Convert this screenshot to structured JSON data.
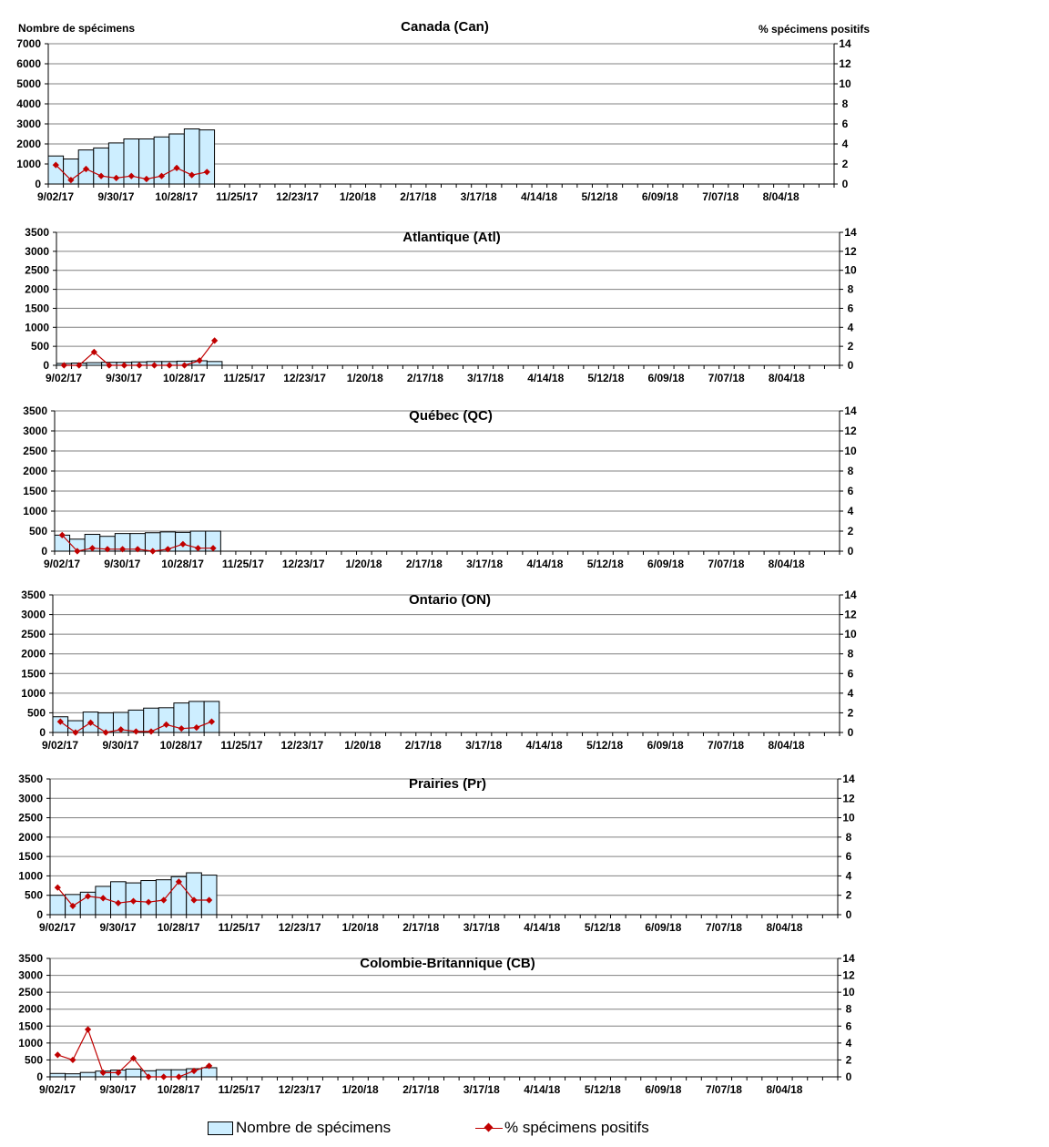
{
  "left_axis_title": "Nombre de spécimens",
  "right_axis_title": "% spécimens positifs",
  "legend": {
    "bars": "Nombre de spécimens",
    "line": "% spécimens positifs"
  },
  "colors": {
    "bar_fill": "#cdeeff",
    "bar_stroke": "#000000",
    "line": "#c00000",
    "grid": "#808080"
  },
  "chart_data": [
    {
      "type": "bar",
      "title": "Canada (Can)",
      "x_tick_labels": [
        "9/02/17",
        "9/30/17",
        "10/28/17",
        "11/25/17",
        "12/23/17",
        "1/20/18",
        "2/17/18",
        "3/17/18",
        "4/14/18",
        "5/12/18",
        "6/09/18",
        "7/07/18",
        "8/04/18"
      ],
      "ylim": [
        0,
        7000
      ],
      "y_ticks": [
        0,
        1000,
        2000,
        3000,
        4000,
        5000,
        6000,
        7000
      ],
      "y2lim": [
        0,
        14
      ],
      "y2_ticks": [
        0,
        2,
        4,
        6,
        8,
        10,
        12,
        14
      ],
      "series": [
        {
          "name": "Nombre de spécimens",
          "axis": "left",
          "values": [
            1400,
            1250,
            1700,
            1800,
            2050,
            2250,
            2250,
            2350,
            2500,
            2750,
            2700
          ]
        },
        {
          "name": "% spécimens positifs",
          "axis": "right",
          "values": [
            1.9,
            0.4,
            1.5,
            0.8,
            0.6,
            0.8,
            0.5,
            0.8,
            1.6,
            0.9,
            1.2
          ]
        }
      ]
    },
    {
      "type": "bar",
      "title": "Atlantique (Atl)",
      "x_tick_labels": [
        "9/02/17",
        "9/30/17",
        "10/28/17",
        "11/25/17",
        "12/23/17",
        "1/20/18",
        "2/17/18",
        "3/17/18",
        "4/14/18",
        "5/12/18",
        "6/09/18",
        "7/07/18",
        "8/04/18"
      ],
      "ylim": [
        0,
        3500
      ],
      "y_ticks": [
        0,
        500,
        1000,
        1500,
        2000,
        2500,
        3000,
        3500
      ],
      "y2lim": [
        0,
        14
      ],
      "y2_ticks": [
        0,
        2,
        4,
        6,
        8,
        10,
        12,
        14
      ],
      "series": [
        {
          "name": "Nombre de spécimens",
          "axis": "left",
          "values": [
            50,
            60,
            70,
            80,
            80,
            90,
            100,
            100,
            110,
            120,
            100
          ]
        },
        {
          "name": "% spécimens positifs",
          "axis": "right",
          "values": [
            0,
            0,
            1.4,
            0,
            0,
            0,
            0,
            0,
            0,
            0.5,
            2.6
          ]
        }
      ]
    },
    {
      "type": "bar",
      "title": "Québec (QC)",
      "x_tick_labels": [
        "9/02/17",
        "9/30/17",
        "10/28/17",
        "11/25/17",
        "12/23/17",
        "1/20/18",
        "2/17/18",
        "3/17/18",
        "4/14/18",
        "5/12/18",
        "6/09/18",
        "7/07/18",
        "8/04/18"
      ],
      "ylim": [
        0,
        3500
      ],
      "y_ticks": [
        0,
        500,
        1000,
        1500,
        2000,
        2500,
        3000,
        3500
      ],
      "y2lim": [
        0,
        14
      ],
      "y2_ticks": [
        0,
        2,
        4,
        6,
        8,
        10,
        12,
        14
      ],
      "series": [
        {
          "name": "Nombre de spécimens",
          "axis": "left",
          "values": [
            400,
            300,
            420,
            370,
            440,
            440,
            460,
            480,
            470,
            500,
            500
          ]
        },
        {
          "name": "% spécimens positifs",
          "axis": "right",
          "values": [
            1.6,
            0,
            0.3,
            0.2,
            0.2,
            0.2,
            0,
            0.2,
            0.7,
            0.3,
            0.3
          ]
        }
      ]
    },
    {
      "type": "bar",
      "title": "Ontario (ON)",
      "x_tick_labels": [
        "9/02/17",
        "9/30/17",
        "10/28/17",
        "11/25/17",
        "12/23/17",
        "1/20/18",
        "2/17/18",
        "3/17/18",
        "4/14/18",
        "5/12/18",
        "6/09/18",
        "7/07/18",
        "8/04/18"
      ],
      "ylim": [
        0,
        3500
      ],
      "y_ticks": [
        0,
        500,
        1000,
        1500,
        2000,
        2500,
        3000,
        3500
      ],
      "y2lim": [
        0,
        14
      ],
      "y2_ticks": [
        0,
        2,
        4,
        6,
        8,
        10,
        12,
        14
      ],
      "series": [
        {
          "name": "Nombre de spécimens",
          "axis": "left",
          "values": [
            400,
            300,
            520,
            500,
            510,
            570,
            620,
            630,
            750,
            790,
            790
          ]
        },
        {
          "name": "% spécimens positifs",
          "axis": "right",
          "values": [
            1.1,
            0,
            1.0,
            0,
            0.3,
            0.1,
            0.1,
            0.8,
            0.4,
            0.5,
            1.1
          ]
        }
      ]
    },
    {
      "type": "bar",
      "title": "Prairies (Pr)",
      "x_tick_labels": [
        "9/02/17",
        "9/30/17",
        "10/28/17",
        "11/25/17",
        "12/23/17",
        "1/20/18",
        "2/17/18",
        "3/17/18",
        "4/14/18",
        "5/12/18",
        "6/09/18",
        "7/07/18",
        "8/04/18"
      ],
      "ylim": [
        0,
        3500
      ],
      "y_ticks": [
        0,
        500,
        1000,
        1500,
        2000,
        2500,
        3000,
        3500
      ],
      "y2lim": [
        0,
        14
      ],
      "y2_ticks": [
        0,
        2,
        4,
        6,
        8,
        10,
        12,
        14
      ],
      "series": [
        {
          "name": "Nombre de spécimens",
          "axis": "left",
          "values": [
            500,
            520,
            580,
            730,
            850,
            820,
            880,
            900,
            980,
            1080,
            1020
          ]
        },
        {
          "name": "% spécimens positifs",
          "axis": "right",
          "values": [
            2.8,
            0.9,
            1.9,
            1.7,
            1.2,
            1.4,
            1.3,
            1.5,
            3.4,
            1.5,
            1.5
          ]
        }
      ]
    },
    {
      "type": "bar",
      "title": "Colombie-Britannique (CB)",
      "x_tick_labels": [
        "9/02/17",
        "9/30/17",
        "10/28/17",
        "11/25/17",
        "12/23/17",
        "1/20/18",
        "2/17/18",
        "3/17/18",
        "4/14/18",
        "5/12/18",
        "6/09/18",
        "7/07/18",
        "8/04/18"
      ],
      "ylim": [
        0,
        3500
      ],
      "y_ticks": [
        0,
        500,
        1000,
        1500,
        2000,
        2500,
        3000,
        3500
      ],
      "y2lim": [
        0,
        14
      ],
      "y2_ticks": [
        0,
        2,
        4,
        6,
        8,
        10,
        12,
        14
      ],
      "series": [
        {
          "name": "Nombre de spécimens",
          "axis": "left",
          "values": [
            100,
            90,
            130,
            170,
            200,
            230,
            180,
            210,
            210,
            240,
            270
          ]
        },
        {
          "name": "% spécimens positifs",
          "axis": "right",
          "values": [
            2.6,
            2.0,
            5.6,
            0.5,
            0.5,
            2.2,
            0,
            0,
            0,
            0.7,
            1.3
          ]
        }
      ]
    }
  ]
}
